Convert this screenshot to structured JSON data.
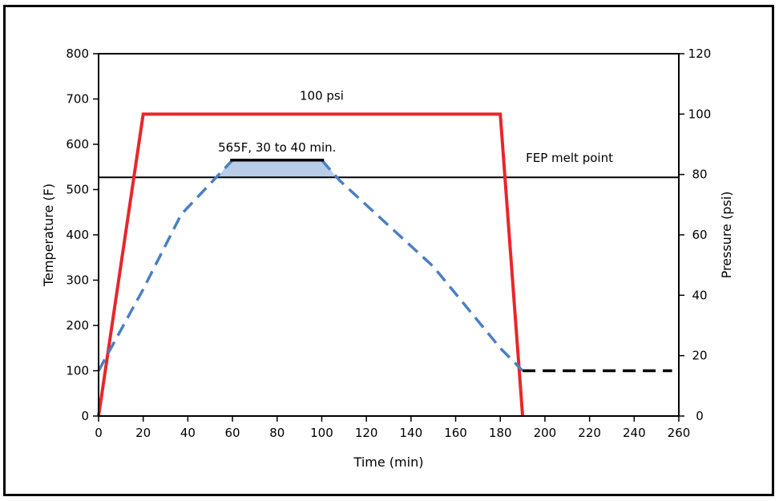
{
  "chart_data": {
    "type": "line",
    "xlabel": "Time (min)",
    "ylabel": "Temperature (F)",
    "y2label": "Pressure (psi)",
    "xlim": [
      0,
      260
    ],
    "ylim": [
      0,
      800
    ],
    "y2lim": [
      0,
      120
    ],
    "xticks": [
      0,
      20,
      40,
      60,
      80,
      100,
      120,
      140,
      160,
      180,
      200,
      220,
      240,
      260
    ],
    "yticks": [
      0,
      100,
      200,
      300,
      400,
      500,
      600,
      700,
      800
    ],
    "y2ticks": [
      0,
      20,
      40,
      60,
      80,
      100,
      120
    ],
    "grid": false,
    "series": [
      {
        "role": "pressure",
        "axis": "right",
        "color": "#e8262b",
        "style": "solid",
        "x": [
          0,
          20,
          180,
          190
        ],
        "y": [
          0,
          100,
          100,
          0
        ]
      },
      {
        "role": "temperature",
        "axis": "left",
        "color": "#4a7fc4",
        "style": "dashed",
        "x": [
          0,
          20,
          37,
          60,
          100,
          108,
          150,
          180,
          190
        ],
        "y": [
          100,
          280,
          445,
          565,
          565,
          520,
          330,
          150,
          100
        ]
      },
      {
        "role": "temperature-hold",
        "axis": "left",
        "color": "#000000",
        "style": "dashed",
        "x": [
          190,
          257
        ],
        "y": [
          100,
          100
        ]
      }
    ],
    "reference_line": {
      "y": 527,
      "axis": "left",
      "color": "#000000"
    },
    "hold_band": {
      "x0": 59,
      "x1": 101,
      "y_top": 565,
      "y_base": 527,
      "fill": "#b7cde8"
    },
    "annotations": {
      "pressure_label": "100 psi",
      "hold_label": "565F, 30 to 40 min.",
      "melt_label": "FEP melt point"
    }
  }
}
